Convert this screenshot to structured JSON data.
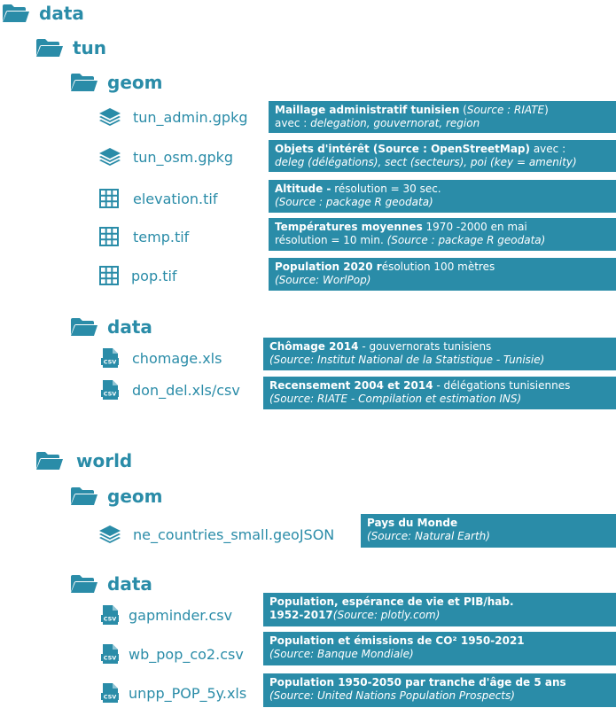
{
  "colors": {
    "accent": "#2a8ca8",
    "text_on_accent": "#ffffff"
  },
  "icons": {
    "folder": "folder-icon",
    "layers": "layers-icon",
    "grid": "grid-icon",
    "csv": "csv-file-icon"
  },
  "tree": {
    "data_label": "data",
    "tun": {
      "label": "tun",
      "geom": {
        "label": "geom",
        "files": [
          {
            "name": "tun_admin.gpkg",
            "desc_bold": "Maillage administratif tunisien",
            "desc_normal": " (",
            "desc_italic": "Source : RIATE",
            "desc_normal2": ")",
            "line2_normal": "avec : ",
            "line2_italic": "delegation, gouvernorat, region"
          },
          {
            "name": "tun_osm.gpkg",
            "desc_bold": "Objets d'intérêt (Source : OpenStreetMap)",
            "desc_normal": " avec :",
            "line2_italic": "deleg (délégations), sect (secteurs), poi (key = amenity)"
          },
          {
            "name": "elevation.tif",
            "desc_bold": "Altitude -",
            "desc_normal": " résolution = 30 sec.",
            "line2_italic": "(Source : package R geodata)"
          },
          {
            "name": "temp.tif",
            "desc_bold": "Températures moyennes",
            "desc_normal": " 1970 -2000 en mai",
            "line2_normal": "résolution = 10 min. ",
            "line2_italic": "(Source : package R geodata)"
          },
          {
            "name": "pop.tif",
            "desc_bold": "Population 2020 r",
            "desc_normal": "ésolution 100 mètres",
            "line2_italic": "(Source: WorlPop)"
          }
        ]
      },
      "data": {
        "label": "data",
        "files": [
          {
            "name": "chomage.xls",
            "desc_bold": "Chômage 2014",
            "desc_normal": " - gouvernorats tunisiens",
            "line2_italic": "(Source: Institut National de la Statistique - Tunisie)"
          },
          {
            "name": "don_del.xls/csv",
            "desc_bold": "Recensement 2004 et 2014",
            "desc_normal": " - délégations tunisiennes",
            "line2_italic": "(Source: RIATE - Compilation et estimation INS)"
          }
        ]
      }
    },
    "world": {
      "label": "world",
      "geom": {
        "label": "geom",
        "files": [
          {
            "name": "ne_countries_small.geoJSON",
            "desc_bold": "Pays du Monde",
            "line2_italic": "(Source: Natural Earth)"
          }
        ]
      },
      "data": {
        "label": "data",
        "files": [
          {
            "name": "gapminder.csv",
            "desc_bold": "Population, espérance de vie et PIB/hab.",
            "line2_bold": " 1952-2017",
            "line2_italic": "(Source: plotly.com)"
          },
          {
            "name": "wb_pop_co2.csv",
            "desc_bold": "Population et émissions de CO²  1950-2021",
            "line2_italic": "(Source: Banque Mondiale)"
          },
          {
            "name": "unpp_POP_5y.xls",
            "desc_bold": "Population 1950-2050 par tranche d'âge de 5 ans",
            "line2_italic": "(Source: United Nations Population Prospects)"
          }
        ]
      }
    }
  }
}
